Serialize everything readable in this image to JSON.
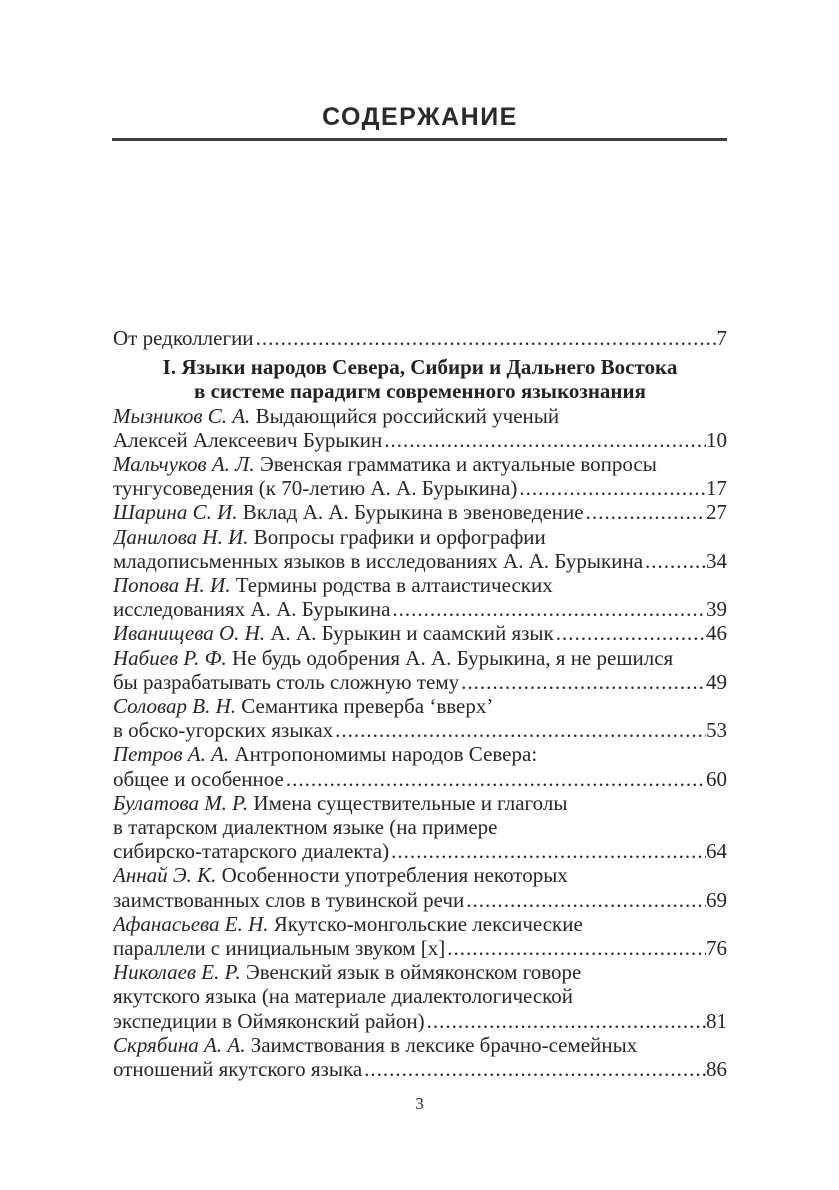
{
  "header": {
    "title": "СОДЕРЖАНИЕ"
  },
  "footer": {
    "page_number": "3"
  },
  "colors": {
    "text": "#262626",
    "rule": "#3d3d3d",
    "background": "#ffffff"
  },
  "toc": {
    "items": [
      {
        "kind": "entry",
        "author": "",
        "lines": [
          "От редколлегии"
        ],
        "page": "7"
      },
      {
        "kind": "section",
        "lines": [
          "I. Языки народов Севера, Сибири и Дальнего Востока",
          "в системе парадигм современного языкознания"
        ]
      },
      {
        "kind": "entry",
        "author": "Мызников С. А.",
        "lines": [
          "Выдающийся российский ученый",
          "Алексей Алексеевич Бурыкин"
        ],
        "page": "10"
      },
      {
        "kind": "entry",
        "author": "Мальчуков А. Л.",
        "lines": [
          "Эвенская грамматика и актуальные вопросы",
          "тунгусоведения (к 70-летию А. А. Бурыкина)"
        ],
        "page": "17"
      },
      {
        "kind": "entry",
        "author": "Шарина С. И.",
        "lines": [
          "Вклад А. А. Бурыкина в эвеноведение"
        ],
        "page": "27"
      },
      {
        "kind": "entry",
        "author": "Данилова Н. И.",
        "lines": [
          "Вопросы графики и орфографии",
          "младописьменных языков в исследованиях А. А. Бурыкина"
        ],
        "page": "34"
      },
      {
        "kind": "entry",
        "author": "Попова Н. И.",
        "lines": [
          "Термины родства в алтаистических",
          "исследованиях А. А. Бурыкина"
        ],
        "page": "39"
      },
      {
        "kind": "entry",
        "author": "Иванищева О. Н.",
        "lines": [
          "А. А. Бурыкин и саамский язык"
        ],
        "page": "46"
      },
      {
        "kind": "entry",
        "author": "Набиев Р. Ф.",
        "lines": [
          "Не будь одобрения А. А. Бурыкина, я не решился",
          "бы разрабатывать столь сложную тему"
        ],
        "page": "49"
      },
      {
        "kind": "entry",
        "author": "Соловар В. Н.",
        "lines": [
          "Семантика преверба ‘вверх’",
          "в обско-угорских языках"
        ],
        "page": "53"
      },
      {
        "kind": "entry",
        "author": "Петров А. А.",
        "lines": [
          "Антропономимы народов Севера:",
          "общее и особенное"
        ],
        "page": "60"
      },
      {
        "kind": "entry",
        "author": "Булатова М. Р.",
        "lines": [
          "Имена существительные и глаголы",
          "в татарском диалектном языке (на примере",
          "сибирско-татарского диалекта)"
        ],
        "page": "64"
      },
      {
        "kind": "entry",
        "author": "Аннай Э. К.",
        "lines": [
          "Особенности употребления некоторых",
          "заимствованных слов в тувинской речи"
        ],
        "page": "69"
      },
      {
        "kind": "entry",
        "author": "Афанасьева Е. Н.",
        "lines": [
          "Якутско-монгольские лексические",
          "параллели с инициальным звуком [х]"
        ],
        "page": "76"
      },
      {
        "kind": "entry",
        "author": "Николаев Е. Р.",
        "lines": [
          "Эвенский язык в оймяконском говоре",
          "якутского языка (на материале диалектологической",
          "экспедиции в Оймяконский район)"
        ],
        "page": "81"
      },
      {
        "kind": "entry",
        "author": "Скрябина А. А.",
        "lines": [
          "Заимствования в лексике брачно-семейных",
          "отношений якутского языка"
        ],
        "page": "86"
      }
    ]
  }
}
